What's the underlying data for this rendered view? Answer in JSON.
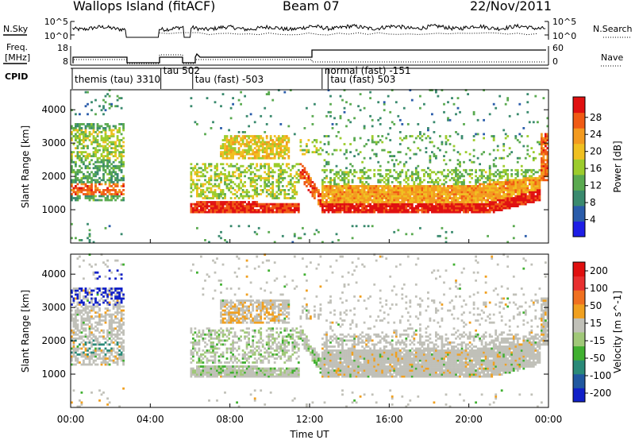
{
  "header": {
    "station": "Wallops Island (fitACF)",
    "beam": "Beam 07",
    "date": "22/Nov/2011"
  },
  "params": {
    "nsky_label": "N.Sky",
    "nsearch_label": "N.Search",
    "freq_label_line1": "Freq.",
    "freq_label_line2": "[MHz]",
    "nave_label": "Nave",
    "cpid_label": "CPID",
    "noise_ticks_left": [
      "10^5",
      "10^0"
    ],
    "noise_ticks_right": [
      "10^5",
      "10^0"
    ],
    "freq_ticks": [
      "18",
      "8"
    ],
    "nave_ticks": [
      "60",
      "0"
    ],
    "cpid_segments": [
      {
        "label": "themis (tau) 3310",
        "start_h": 0.0,
        "end_h": 2.7
      },
      {
        "label": "tau 502",
        "start_h": 4.45,
        "end_h": 5.6
      },
      {
        "label": "tau (fast) -503",
        "start_h": 6.05,
        "end_h": 12.55
      },
      {
        "label": "normal (fast) -151",
        "start_h": 12.55,
        "end_h": 12.85
      },
      {
        "label": "tau (fast) 503",
        "start_h": 12.85,
        "end_h": 24.0
      }
    ]
  },
  "chart_data": [
    {
      "type": "heatmap",
      "name": "power",
      "xlabel": "",
      "ylabel": "Slant Range [km]",
      "xlim": [
        0,
        24
      ],
      "ylim": [
        0,
        4600
      ],
      "yticks": [
        1000,
        2000,
        3000,
        4000
      ],
      "colorbar_label": "Power [dB]",
      "colorbar_ticks": [
        "4",
        "8",
        "12",
        "16",
        "20",
        "24",
        "28"
      ],
      "colorbar_colors": [
        "#1e1ee6",
        "#2a5caa",
        "#3a8a6e",
        "#5aaa50",
        "#9ccc2c",
        "#f0c020",
        "#f39a1f",
        "#f05a14",
        "#e01010"
      ],
      "data_gaps_h": [
        [
          2.75,
          4.4
        ],
        [
          5.65,
          6.0
        ]
      ]
    },
    {
      "type": "heatmap",
      "name": "velocity",
      "xlabel": "Time UT",
      "ylabel": "Slant Range [km]",
      "xlim": [
        0,
        24
      ],
      "ylim": [
        0,
        4600
      ],
      "yticks": [
        1000,
        2000,
        3000,
        4000
      ],
      "xticks": [
        "00:00",
        "04:00",
        "08:00",
        "12:00",
        "16:00",
        "20:00",
        "00:00"
      ],
      "colorbar_label": "Velocity [m s^-1]",
      "colorbar_ticks": [
        "200",
        "100",
        "50",
        "15",
        "-15",
        "-50",
        "-100",
        "-200"
      ],
      "colorbar_colors": [
        "#1020c8",
        "#2058a0",
        "#2a8a78",
        "#40b030",
        "#a0c878",
        "#c0c0b8",
        "#f0a020",
        "#f07020",
        "#e83030",
        "#e01010"
      ],
      "data_gaps_h": [
        [
          2.75,
          4.4
        ],
        [
          5.65,
          6.0
        ]
      ]
    }
  ]
}
